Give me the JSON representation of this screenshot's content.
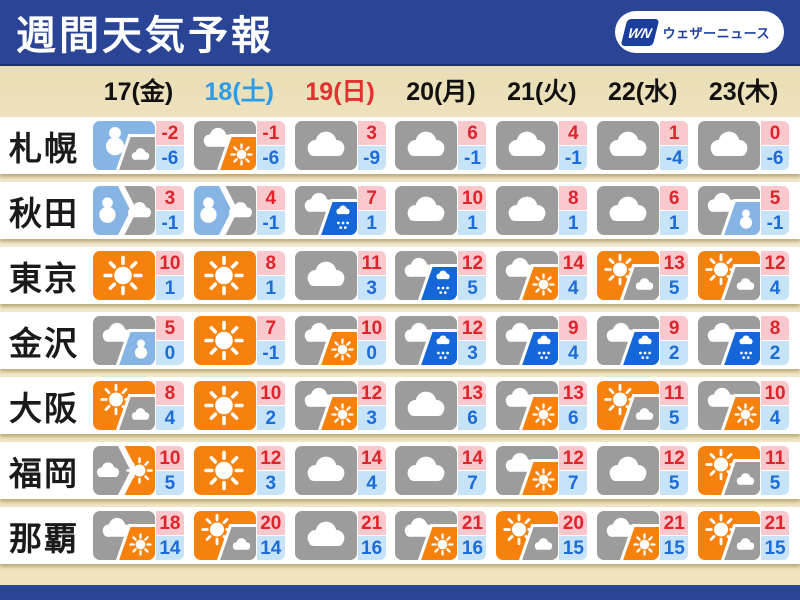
{
  "title_bar": {
    "title": "週間天気予報",
    "logo_wn": "WN",
    "logo_text": "ウェザーニュース"
  },
  "header": {
    "days": [
      {
        "label": "17(金)",
        "color": "#111111"
      },
      {
        "label": "18(土)",
        "color": "#2d9be8"
      },
      {
        "label": "19(日)",
        "color": "#e23131"
      },
      {
        "label": "20(月)",
        "color": "#111111"
      },
      {
        "label": "21(火)",
        "color": "#111111"
      },
      {
        "label": "22(水)",
        "color": "#111111"
      },
      {
        "label": "23(木)",
        "color": "#111111"
      }
    ]
  },
  "colors": {
    "navy": "#2a4496",
    "sunny": "#f6820d",
    "cloudy": "#9c9c9c",
    "snow": "#86b5e5",
    "rain": "#1566d8",
    "high_bg": "#f9c8cd",
    "high_text": "#e0242c",
    "low_bg": "#c6e3f8",
    "low_text": "#1c6cd9"
  },
  "rows": [
    {
      "city": "札幌",
      "cells": [
        {
          "w": "snow/cloudy",
          "hi": "-2",
          "lo": "-6"
        },
        {
          "w": "cloudy/sunny",
          "hi": "-1",
          "lo": "-6"
        },
        {
          "w": "cloudy",
          "hi": "3",
          "lo": "-9"
        },
        {
          "w": "cloudy",
          "hi": "6",
          "lo": "-1"
        },
        {
          "w": "cloudy",
          "hi": "4",
          "lo": "-1"
        },
        {
          "w": "cloudy",
          "hi": "1",
          "lo": "-4"
        },
        {
          "w": "cloudy",
          "hi": "0",
          "lo": "-6"
        }
      ]
    },
    {
      "city": "秋田",
      "cells": [
        {
          "w": "snow>cloudy",
          "hi": "3",
          "lo": "-1"
        },
        {
          "w": "snow>cloudy",
          "hi": "4",
          "lo": "-1"
        },
        {
          "w": "cloudy/rain",
          "hi": "7",
          "lo": "1"
        },
        {
          "w": "cloudy",
          "hi": "10",
          "lo": "1"
        },
        {
          "w": "cloudy",
          "hi": "8",
          "lo": "1"
        },
        {
          "w": "cloudy",
          "hi": "6",
          "lo": "1"
        },
        {
          "w": "cloudy/snow",
          "hi": "5",
          "lo": "-1"
        }
      ]
    },
    {
      "city": "東京",
      "cells": [
        {
          "w": "sunny",
          "hi": "10",
          "lo": "1"
        },
        {
          "w": "sunny",
          "hi": "8",
          "lo": "1"
        },
        {
          "w": "cloudy",
          "hi": "11",
          "lo": "3"
        },
        {
          "w": "cloudy/rain",
          "hi": "12",
          "lo": "5"
        },
        {
          "w": "cloudy/sunny",
          "hi": "14",
          "lo": "4"
        },
        {
          "w": "sunny/cloudy",
          "hi": "13",
          "lo": "5"
        },
        {
          "w": "sunny/cloudy",
          "hi": "12",
          "lo": "4"
        }
      ]
    },
    {
      "city": "金沢",
      "cells": [
        {
          "w": "cloudy/snow",
          "hi": "5",
          "lo": "0"
        },
        {
          "w": "sunny",
          "hi": "7",
          "lo": "-1"
        },
        {
          "w": "cloudy/sunny",
          "hi": "10",
          "lo": "0"
        },
        {
          "w": "cloudy/rain",
          "hi": "12",
          "lo": "3"
        },
        {
          "w": "cloudy/rain",
          "hi": "9",
          "lo": "4"
        },
        {
          "w": "cloudy/rain",
          "hi": "9",
          "lo": "2"
        },
        {
          "w": "cloudy/rain",
          "hi": "8",
          "lo": "2"
        }
      ]
    },
    {
      "city": "大阪",
      "cells": [
        {
          "w": "sunny/cloudy",
          "hi": "8",
          "lo": "4"
        },
        {
          "w": "sunny",
          "hi": "10",
          "lo": "2"
        },
        {
          "w": "cloudy/sunny",
          "hi": "12",
          "lo": "3"
        },
        {
          "w": "cloudy",
          "hi": "13",
          "lo": "6"
        },
        {
          "w": "cloudy/sunny",
          "hi": "13",
          "lo": "6"
        },
        {
          "w": "sunny/cloudy",
          "hi": "11",
          "lo": "5"
        },
        {
          "w": "cloudy/sunny",
          "hi": "10",
          "lo": "4"
        }
      ]
    },
    {
      "city": "福岡",
      "cells": [
        {
          "w": "cloudy>sunny",
          "hi": "10",
          "lo": "5"
        },
        {
          "w": "sunny",
          "hi": "12",
          "lo": "3"
        },
        {
          "w": "cloudy",
          "hi": "14",
          "lo": "4"
        },
        {
          "w": "cloudy",
          "hi": "14",
          "lo": "7"
        },
        {
          "w": "cloudy/sunny",
          "hi": "12",
          "lo": "7"
        },
        {
          "w": "cloudy",
          "hi": "12",
          "lo": "5"
        },
        {
          "w": "sunny/cloudy",
          "hi": "11",
          "lo": "5"
        }
      ]
    },
    {
      "city": "那覇",
      "cells": [
        {
          "w": "cloudy/sunny",
          "hi": "18",
          "lo": "14"
        },
        {
          "w": "sunny/cloudy",
          "hi": "20",
          "lo": "14"
        },
        {
          "w": "cloudy",
          "hi": "21",
          "lo": "16"
        },
        {
          "w": "cloudy/sunny",
          "hi": "21",
          "lo": "16"
        },
        {
          "w": "sunny/cloudy",
          "hi": "20",
          "lo": "15"
        },
        {
          "w": "cloudy/sunny",
          "hi": "21",
          "lo": "15"
        },
        {
          "w": "sunny/cloudy",
          "hi": "21",
          "lo": "15"
        }
      ]
    }
  ]
}
